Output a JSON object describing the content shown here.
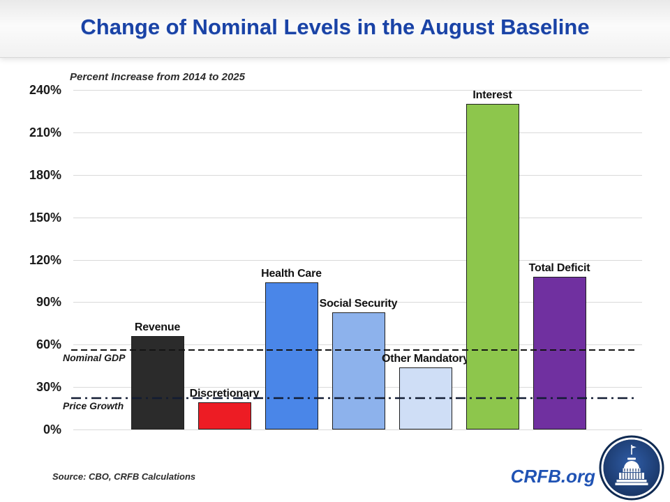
{
  "slide_title": "Change of Nominal Levels in the August Baseline",
  "chart_data": {
    "type": "bar",
    "subtitle": "Percent Increase from 2014 to 2025",
    "categories": [
      "Revenue",
      "Discretionary",
      "Health Care",
      "Social Security",
      "Other Mandatory",
      "Interest",
      "Total Deficit"
    ],
    "values": [
      66,
      19,
      104,
      83,
      44,
      230,
      108
    ],
    "bar_colors": [
      "#2b2b2b",
      "#ed1c24",
      "#4a86e8",
      "#8db2ec",
      "#cfdef6",
      "#8dc64c",
      "#7030a0"
    ],
    "title": "Change of Nominal Levels in the August Baseline",
    "xlabel": "",
    "ylabel": "",
    "ylim": [
      0,
      240
    ],
    "ytick_step": 30,
    "ytick_labels": [
      "0%",
      "30%",
      "60%",
      "90%",
      "120%",
      "150%",
      "180%",
      "210%",
      "240%"
    ],
    "grid": true,
    "legend": "none",
    "reference_lines": [
      {
        "label": "Nominal GDP",
        "value": 56,
        "style": "dashed"
      },
      {
        "label": "Price Growth",
        "value": 22,
        "style": "dash-dot"
      }
    ]
  },
  "footer": {
    "source_note": "Source: CBO, CRFB Calculations",
    "brand_text": "CRFB.org"
  },
  "icons": {
    "logo": "crfb-capitol-dome-logo"
  },
  "colors": {
    "title_blue": "#1a43a6",
    "brand_blue": "#2053b4",
    "grid_gray": "#d9d9d9",
    "axis_text": "#1a1a1a",
    "logo_navy": "#0f2a52",
    "ref_dashed": "#141414",
    "ref_dashdot": "#121c33"
  }
}
